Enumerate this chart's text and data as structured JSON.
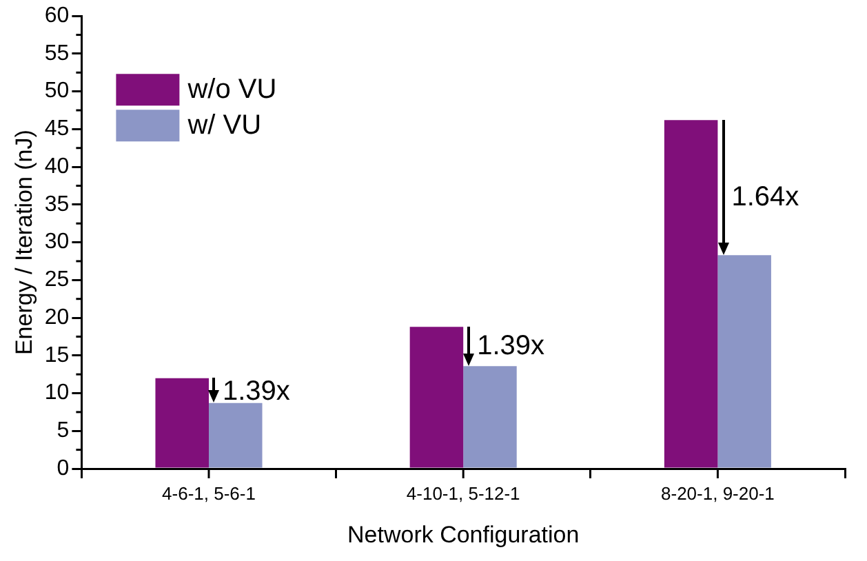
{
  "chart_data": {
    "type": "bar",
    "xlabel": "Network Configuration",
    "ylabel": "Energy / Iteration (nJ)",
    "categories": [
      "4-6-1, 5-6-1",
      "4-10-1, 5-12-1",
      "8-20-1, 9-20-1"
    ],
    "series": [
      {
        "name": "w/o VU",
        "color": "#800f7a",
        "values": [
          12.0,
          18.8,
          46.2
        ]
      },
      {
        "name": "w/ VU",
        "color": "#8c96c6",
        "values": [
          8.7,
          13.6,
          28.3
        ]
      }
    ],
    "ylim": [
      0,
      60
    ],
    "yticks": [
      0,
      5,
      10,
      15,
      20,
      25,
      30,
      35,
      40,
      45,
      50,
      55,
      60
    ],
    "annotations": [
      {
        "text": "1.39x",
        "x": "4-6-1, 5-6-1",
        "y": 10.1
      },
      {
        "text": "1.39x",
        "x": "4-10-1, 5-12-1",
        "y": 16.2
      },
      {
        "text": "1.64x",
        "x": "8-20-1, 9-20-1",
        "y": 35.9
      }
    ],
    "grid": false,
    "legend": "top left"
  }
}
